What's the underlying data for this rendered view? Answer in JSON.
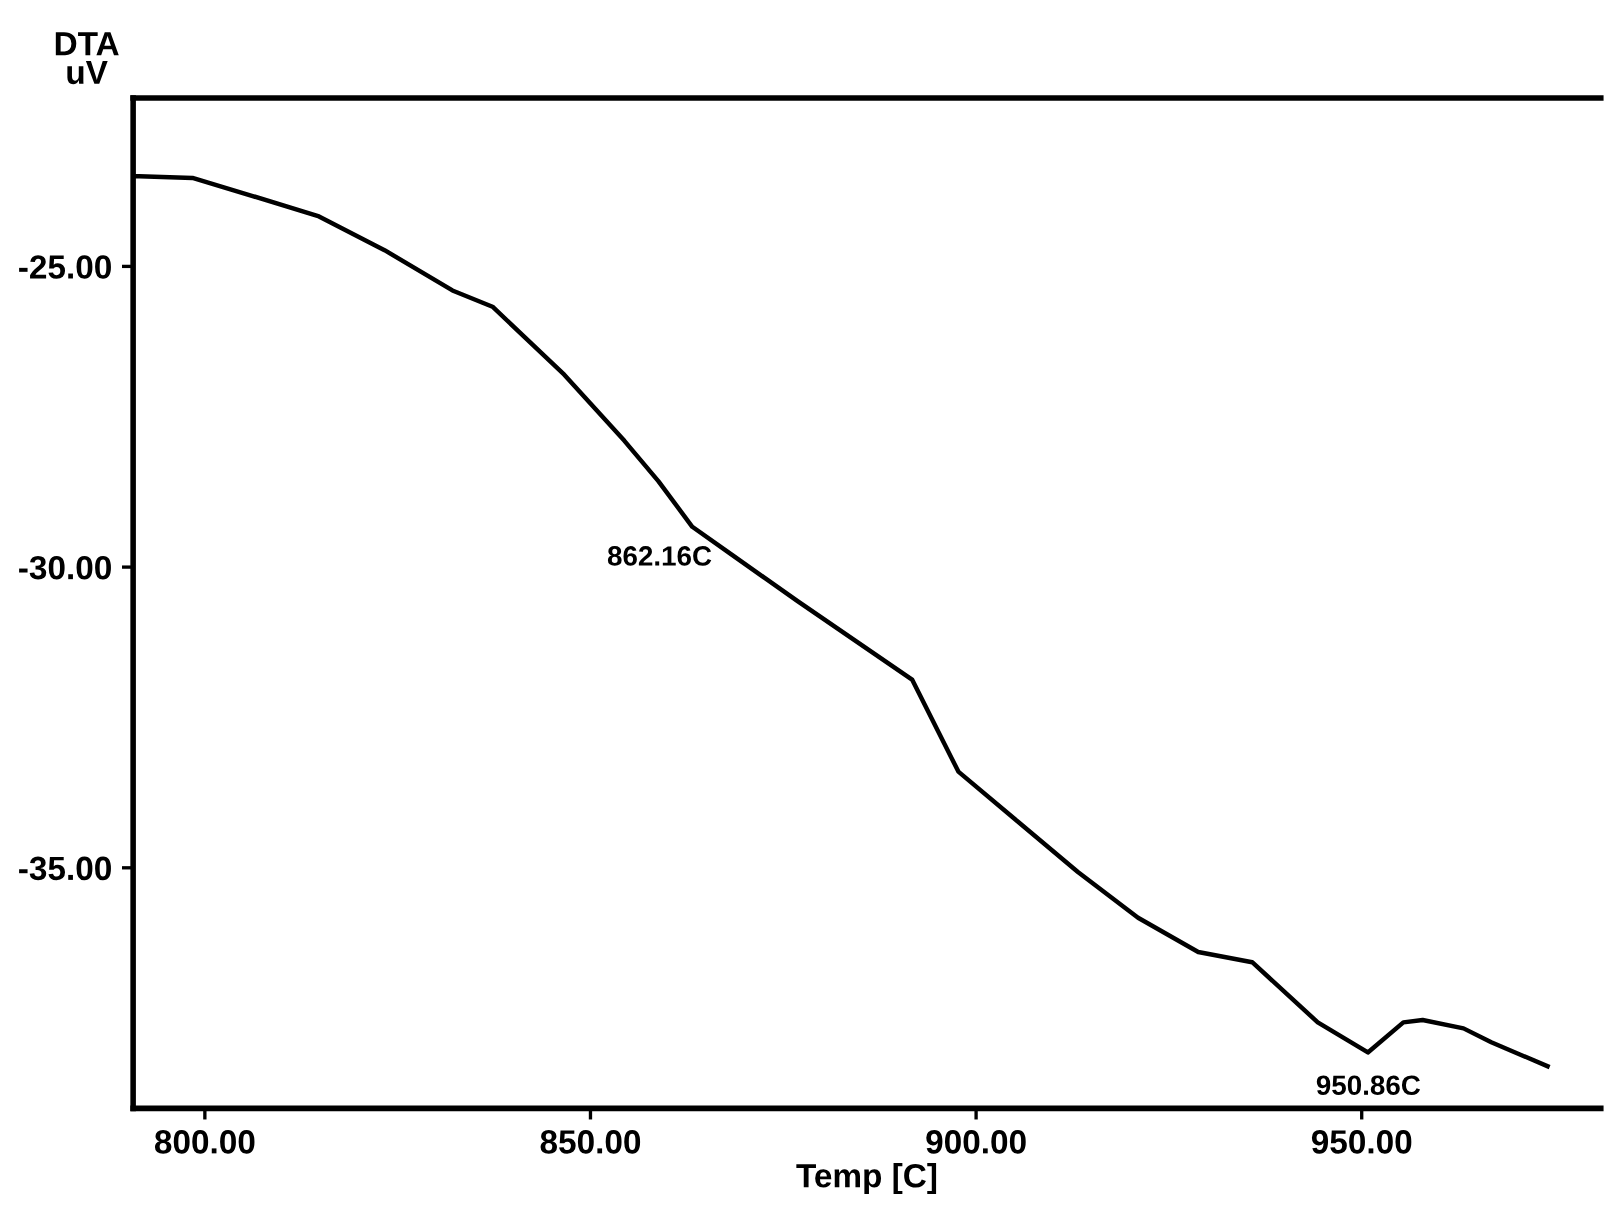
{
  "chart_data": {
    "type": "line",
    "ylabel": "DTA\nuV",
    "xlabel": "Temp [C]",
    "x": [
      790.8,
      791.5,
      798.4,
      806.2,
      814.8,
      823.3,
      832.1,
      837.3,
      846.6,
      854.4,
      858.8,
      863.2,
      868.4,
      876.9,
      891.7,
      897.7,
      905.4,
      913.2,
      921.0,
      928.8,
      935.8,
      944.3,
      950.8,
      955.4,
      957.9,
      963.2,
      966.8,
      974.1
    ],
    "series": [
      {
        "color": "#000000",
        "values": [
          -23.5,
          -23.5,
          -23.53,
          -23.83,
          -24.17,
          -24.73,
          -25.4,
          -25.67,
          -26.8,
          -27.9,
          -28.57,
          -29.33,
          -29.8,
          -30.57,
          -31.87,
          -33.4,
          -34.23,
          -35.07,
          -35.83,
          -36.4,
          -36.57,
          -37.57,
          -38.07,
          -37.57,
          -37.53,
          -37.67,
          -37.9,
          -38.3
        ]
      }
    ],
    "xlim": [
      790.7,
      981
    ],
    "ylim": [
      -39.0,
      -22.2
    ],
    "xticks": [
      {
        "value": 800,
        "label": "800.00"
      },
      {
        "value": 850,
        "label": "850.00"
      },
      {
        "value": 900,
        "label": "900.00"
      },
      {
        "value": 950,
        "label": "950.00"
      }
    ],
    "yticks": [
      {
        "value": -25,
        "label": "-25.00"
      },
      {
        "value": -30,
        "label": "-30.00"
      },
      {
        "value": -35,
        "label": "-35.00"
      }
    ],
    "annotations": [
      {
        "text": "862.16C",
        "x": 862.16,
        "y": -29.3
      },
      {
        "text": "950.86C",
        "x": 950.86,
        "y": -38.07
      }
    ],
    "grid": false,
    "legend": false,
    "marker": "none",
    "line_style": "solid"
  }
}
